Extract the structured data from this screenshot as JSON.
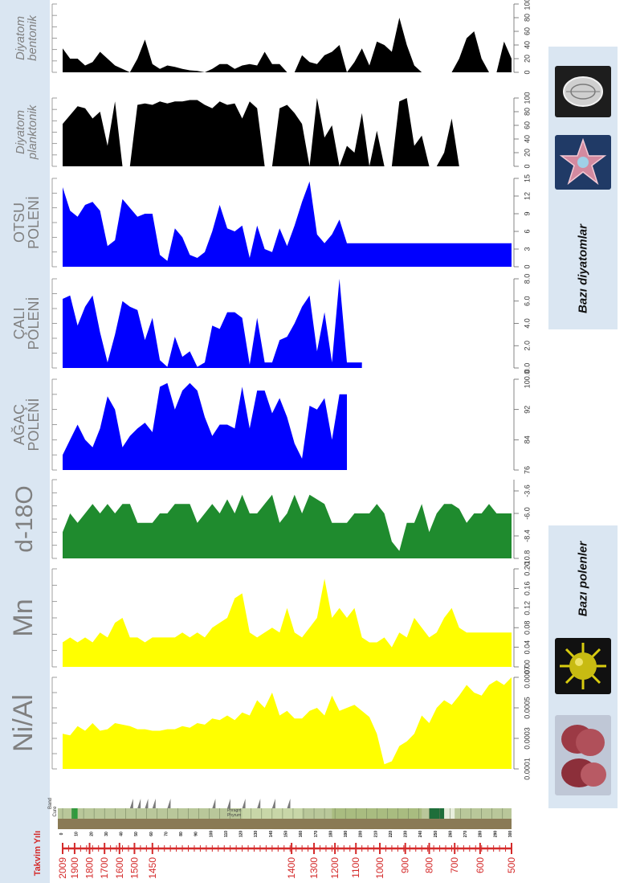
{
  "chart_data": [
    {
      "type": "area",
      "ylabel_lines": [
        "Diyatom",
        "bentonik"
      ],
      "ticks": [
        "0",
        "20",
        "40",
        "60",
        "80",
        "100"
      ],
      "ylim": [
        0,
        100
      ],
      "color": "#000000",
      "x": [
        0,
        5,
        10,
        15,
        20,
        25,
        30,
        35,
        40,
        45,
        50,
        55,
        60,
        65,
        70,
        75,
        80,
        85,
        90,
        95,
        100,
        105,
        110,
        115,
        120,
        125,
        130,
        135,
        140,
        145,
        150,
        155,
        160,
        165,
        170,
        175,
        180,
        185,
        190,
        195,
        200,
        205,
        210,
        215,
        220,
        225,
        230,
        235,
        240,
        245,
        250,
        255,
        260,
        265,
        270,
        275,
        280,
        285,
        290,
        295,
        300
      ],
      "values": [
        35,
        20,
        20,
        10,
        15,
        30,
        20,
        10,
        5,
        0,
        20,
        48,
        12,
        5,
        10,
        8,
        5,
        3,
        2,
        0,
        5,
        12,
        12,
        5,
        10,
        12,
        10,
        30,
        12,
        12,
        0,
        0,
        25,
        15,
        12,
        25,
        30,
        40,
        0,
        15,
        35,
        10,
        45,
        40,
        30,
        80,
        40,
        10,
        0,
        0,
        0,
        0,
        0,
        20,
        50,
        60,
        20,
        0,
        0,
        45,
        20
      ]
    },
    {
      "type": "area",
      "ylabel_lines": [
        "Diyatom",
        "planktonik"
      ],
      "ticks": [
        "0",
        "20",
        "40",
        "60",
        "80",
        "100"
      ],
      "ylim": [
        0,
        100
      ],
      "color": "#000000",
      "x": [
        0,
        5,
        10,
        15,
        20,
        25,
        30,
        35,
        40,
        45,
        50,
        55,
        60,
        65,
        70,
        75,
        80,
        85,
        90,
        95,
        100,
        105,
        110,
        115,
        120,
        125,
        130,
        135,
        140,
        145,
        150,
        155,
        160,
        165,
        170,
        175,
        180,
        185,
        190,
        195,
        200,
        205,
        210,
        215,
        220,
        225,
        230,
        235,
        240,
        245,
        250,
        255,
        260,
        265,
        270,
        275,
        280,
        285,
        290,
        295,
        300
      ],
      "values": [
        62,
        75,
        88,
        85,
        70,
        80,
        30,
        95,
        0,
        0,
        90,
        92,
        90,
        95,
        92,
        95,
        95,
        97,
        97,
        90,
        85,
        95,
        90,
        92,
        70,
        95,
        85,
        0,
        0,
        85,
        90,
        78,
        62,
        0,
        100,
        42,
        60,
        0,
        30,
        20,
        78,
        0,
        52,
        0,
        0,
        95,
        100,
        30,
        45,
        0,
        0,
        20,
        70,
        0,
        0,
        0,
        0,
        0,
        0,
        0,
        0
      ]
    },
    {
      "type": "area",
      "ylabel_lines": [
        "OTSU",
        "POLENİ"
      ],
      "ticks": [
        "0",
        "3",
        "6",
        "9",
        "12",
        "15"
      ],
      "ylim": [
        0,
        15
      ],
      "color": "#0000ff",
      "x": [
        0,
        5,
        10,
        15,
        20,
        25,
        30,
        35,
        40,
        45,
        50,
        55,
        60,
        65,
        70,
        75,
        80,
        85,
        90,
        95,
        100,
        105,
        110,
        115,
        120,
        125,
        130,
        135,
        140,
        145,
        150,
        155,
        160,
        165,
        170,
        175,
        180,
        185,
        190,
        195,
        200,
        205,
        210,
        215,
        220,
        225,
        230,
        235,
        240,
        245,
        250,
        255,
        260,
        265,
        270,
        275,
        280,
        285,
        290,
        295,
        300
      ],
      "values": [
        13.5,
        9.5,
        8.5,
        10.5,
        11,
        9.5,
        3.5,
        4.5,
        11.5,
        10,
        8.5,
        9,
        9,
        2,
        1,
        6.5,
        5,
        2,
        1.5,
        2.5,
        6,
        10.5,
        6.5,
        6,
        7,
        1.5,
        7,
        3,
        2.5,
        6.5,
        3.5,
        7,
        11,
        14.5,
        5.5,
        4,
        5.5,
        8,
        4,
        4,
        4,
        4,
        4,
        4,
        4,
        4,
        4,
        4,
        4,
        4,
        4,
        4,
        4,
        4,
        4,
        4,
        4,
        4,
        4,
        4,
        4
      ]
    },
    {
      "type": "area",
      "ylabel_lines": [
        "ÇALI",
        "POLENİ"
      ],
      "ticks": [
        "0.0",
        "2.0",
        "4.0",
        "6.0",
        "8.0"
      ],
      "ylim": [
        0,
        8
      ],
      "color": "#0000ff",
      "x": [
        0,
        5,
        10,
        15,
        20,
        25,
        30,
        35,
        40,
        45,
        50,
        55,
        60,
        65,
        70,
        75,
        80,
        85,
        90,
        95,
        100,
        105,
        110,
        115,
        120,
        125,
        130,
        135,
        140,
        145,
        150,
        155,
        160,
        165,
        170,
        175,
        180,
        185,
        190,
        195,
        200
      ],
      "values": [
        6.2,
        6.5,
        3.8,
        5.5,
        6.5,
        3.2,
        0.5,
        3,
        6,
        5.5,
        5.2,
        2.5,
        4.5,
        0.7,
        0.1,
        2.8,
        1,
        1.5,
        0.1,
        0.5,
        3.8,
        3.5,
        5,
        5,
        4.5,
        0.3,
        4.5,
        0.5,
        0.5,
        2.5,
        2.8,
        4,
        5.5,
        6.5,
        1.5,
        5,
        0.5,
        8,
        0.5,
        0.5,
        0.5
      ]
    },
    {
      "type": "area",
      "ylabel_lines": [
        "AĞAÇ",
        "POLENİ"
      ],
      "ticks": [
        "76",
        "84",
        "92",
        "100.0"
      ],
      "ylim": [
        76,
        100
      ],
      "color": "#0000ff",
      "x": [
        0,
        5,
        10,
        15,
        20,
        25,
        30,
        35,
        40,
        45,
        50,
        55,
        60,
        65,
        70,
        75,
        80,
        85,
        90,
        95,
        100,
        105,
        110,
        115,
        120,
        125,
        130,
        135,
        140,
        145,
        150,
        155,
        160,
        165,
        170,
        175,
        180,
        185,
        190
      ],
      "values": [
        80,
        84,
        88,
        84,
        82,
        87,
        95.5,
        92,
        82,
        85,
        87,
        88.5,
        86,
        98,
        99,
        92,
        97,
        99,
        97,
        90,
        85,
        88,
        88,
        87,
        98,
        87,
        97,
        97,
        91,
        95,
        90,
        83,
        79,
        93,
        92,
        95,
        84,
        96,
        96
      ]
    },
    {
      "type": "area",
      "ylabel_lines": [
        "d-18O"
      ],
      "ticks": [
        "-10.8",
        "-8.4",
        "-6.0",
        "-3.6"
      ],
      "ylim": [
        -10.8,
        -2.4
      ],
      "color": "#1f8b2e",
      "x": [
        0,
        5,
        10,
        15,
        20,
        25,
        30,
        35,
        40,
        45,
        50,
        55,
        60,
        65,
        70,
        75,
        80,
        85,
        90,
        95,
        100,
        105,
        110,
        115,
        120,
        125,
        130,
        135,
        140,
        145,
        150,
        155,
        160,
        165,
        170,
        175,
        180,
        185,
        190,
        195,
        200,
        205,
        210,
        215,
        220,
        225,
        230,
        235,
        240,
        245,
        250,
        255,
        260,
        265,
        270,
        275,
        280,
        285,
        290,
        295,
        300
      ],
      "values": [
        -8,
        -6,
        -7,
        -6,
        -5,
        -6,
        -5,
        -6,
        -5,
        -5,
        -7,
        -7,
        -7,
        -6,
        -6,
        -5,
        -5,
        -5,
        -7,
        -6,
        -5,
        -6,
        -4.5,
        -6,
        -4,
        -6,
        -6,
        -5,
        -4,
        -7,
        -6,
        -4,
        -6,
        -4,
        -4.5,
        -5,
        -7,
        -7,
        -7,
        -6,
        -6,
        -6,
        -5,
        -6,
        -9,
        -10,
        -7,
        -7,
        -5,
        -8,
        -6,
        -5,
        -5,
        -5.5,
        -7,
        -6,
        -6,
        -5,
        -6,
        -6,
        -6
      ]
    },
    {
      "type": "area",
      "ylabel_lines": [
        "Mn"
      ],
      "ticks": [
        "0.00",
        "0.04",
        "0.08",
        "0.12",
        "0.16",
        "0.20"
      ],
      "ylim": [
        0,
        0.2
      ],
      "color": "#ffff00",
      "x": [
        0,
        5,
        10,
        15,
        20,
        25,
        30,
        35,
        40,
        45,
        50,
        55,
        60,
        65,
        70,
        75,
        80,
        85,
        90,
        95,
        100,
        105,
        110,
        115,
        120,
        125,
        130,
        135,
        140,
        145,
        150,
        155,
        160,
        165,
        170,
        175,
        180,
        185,
        190,
        195,
        200,
        205,
        210,
        215,
        220,
        225,
        230,
        235,
        240,
        245,
        250,
        255,
        260,
        265,
        270,
        275,
        280,
        285,
        290,
        295,
        300
      ],
      "values": [
        0.05,
        0.06,
        0.05,
        0.06,
        0.05,
        0.07,
        0.06,
        0.09,
        0.1,
        0.06,
        0.06,
        0.05,
        0.06,
        0.06,
        0.06,
        0.06,
        0.07,
        0.06,
        0.07,
        0.06,
        0.08,
        0.09,
        0.1,
        0.14,
        0.15,
        0.07,
        0.06,
        0.07,
        0.08,
        0.07,
        0.12,
        0.07,
        0.06,
        0.08,
        0.1,
        0.18,
        0.1,
        0.12,
        0.1,
        0.12,
        0.06,
        0.05,
        0.05,
        0.06,
        0.04,
        0.07,
        0.06,
        0.1,
        0.08,
        0.06,
        0.07,
        0.1,
        0.12,
        0.08,
        0.07,
        0.07,
        0.07,
        0.07,
        0.07,
        0.07,
        0.07
      ]
    },
    {
      "type": "area",
      "ylabel_lines": [
        "Ni/Al"
      ],
      "ticks": [
        "0.0001",
        "0.0003",
        "0.0005",
        "0.0007"
      ],
      "ylim": [
        0.0001,
        0.0007
      ],
      "color": "#ffff00",
      "x": [
        0,
        5,
        10,
        15,
        20,
        25,
        30,
        35,
        40,
        45,
        50,
        55,
        60,
        65,
        70,
        75,
        80,
        85,
        90,
        95,
        100,
        105,
        110,
        115,
        120,
        125,
        130,
        135,
        140,
        145,
        150,
        155,
        160,
        165,
        170,
        175,
        180,
        185,
        190,
        195,
        200,
        205,
        210,
        215,
        220,
        225,
        230,
        235,
        240,
        245,
        250,
        255,
        260,
        265,
        270,
        275,
        280,
        285,
        290,
        295,
        300
      ],
      "values": [
        0.00033,
        0.00032,
        0.00038,
        0.00035,
        0.0004,
        0.00035,
        0.00036,
        0.0004,
        0.00039,
        0.00038,
        0.00036,
        0.00036,
        0.00035,
        0.00035,
        0.00036,
        0.00036,
        0.00038,
        0.00037,
        0.0004,
        0.00039,
        0.00043,
        0.00042,
        0.00045,
        0.00042,
        0.00047,
        0.00045,
        0.00055,
        0.0005,
        0.0006,
        0.00045,
        0.00048,
        0.00043,
        0.00043,
        0.00048,
        0.0005,
        0.00045,
        0.00058,
        0.00048,
        0.0005,
        0.00052,
        0.00048,
        0.00044,
        0.00033,
        0.00013,
        0.00015,
        0.00025,
        0.00028,
        0.00033,
        0.00045,
        0.0004,
        0.0005,
        0.00055,
        0.00052,
        0.00058,
        0.00065,
        0.0006,
        0.00058,
        0.00065,
        0.00068,
        0.00065,
        0.0007
      ]
    }
  ],
  "depth_ticks": [
    "0",
    "10",
    "20",
    "30",
    "40",
    "50",
    "60",
    "70",
    "80",
    "90",
    "100",
    "110",
    "120",
    "130",
    "140",
    "150",
    "160",
    "170",
    "180",
    "190",
    "200",
    "210",
    "220",
    "230",
    "240",
    "250",
    "260",
    "270",
    "280",
    "290",
    "300"
  ],
  "core_log_labels": [
    "Band",
    "Cure"
  ],
  "core_log_annotation": [
    "Phragm",
    "Phyrum"
  ],
  "calendar": {
    "title": "Takvim Yılı",
    "labels": [
      "2009",
      "1900",
      "1800",
      "1700",
      "1600",
      "1500",
      "1450",
      "1400",
      "1300",
      "1200",
      "1100",
      "1000",
      "900",
      "800",
      "700",
      "600",
      "500"
    ],
    "depths": [
      0,
      8,
      18,
      28,
      38,
      48,
      60,
      153,
      168,
      182,
      196,
      212,
      229,
      245,
      262,
      279,
      300
    ]
  },
  "sidebar": {
    "diatoms_caption": "Bazı diyatomlar",
    "pollen_caption": "Bazı polenler"
  },
  "colors": {
    "sidebar_bg": "#dae6f2",
    "calendar_red": "#d42a2a",
    "label_gray": "#808080"
  }
}
